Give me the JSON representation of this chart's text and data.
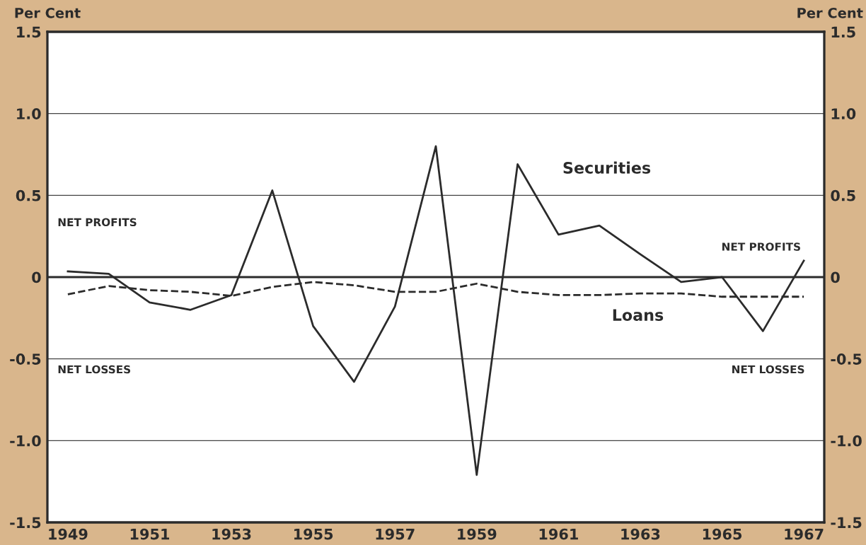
{
  "chart_data": {
    "type": "line",
    "ylabel": "Per Cent",
    "y2label": "Per Cent",
    "x": [
      1949,
      1950,
      1951,
      1952,
      1953,
      1954,
      1955,
      1956,
      1957,
      1958,
      1959,
      1960,
      1961,
      1962,
      1963,
      1964,
      1965,
      1966,
      1967
    ],
    "series": [
      {
        "name": "Securities",
        "color": "#2b2b2b",
        "line_style": "solid",
        "values": [
          0.035,
          0.02,
          -0.155,
          -0.2,
          -0.11,
          0.53,
          -0.3,
          -0.64,
          -0.18,
          0.8,
          -1.21,
          0.69,
          0.26,
          0.315,
          0.14,
          -0.03,
          0.0,
          -0.33,
          0.1
        ]
      },
      {
        "name": "Loans",
        "color": "#2b2b2b",
        "line_style": "dashed",
        "values": [
          -0.105,
          -0.055,
          -0.08,
          -0.09,
          -0.115,
          -0.06,
          -0.03,
          -0.05,
          -0.09,
          -0.09,
          -0.04,
          -0.09,
          -0.11,
          -0.11,
          -0.1,
          -0.1,
          -0.12,
          -0.12,
          -0.12
        ]
      }
    ],
    "xlim": [
      1948.5,
      1967.5
    ],
    "xticks": [
      1949,
      1951,
      1953,
      1955,
      1957,
      1959,
      1961,
      1963,
      1965,
      1967
    ],
    "ylim": [
      -1.5,
      1.5
    ],
    "yticks": [
      {
        "value": -1.5,
        "label": "-1.5"
      },
      {
        "value": -1.0,
        "label": "-1.0"
      },
      {
        "value": -0.5,
        "label": "-0.5"
      },
      0,
      {
        "value": 0.5,
        "label": "0.5"
      },
      {
        "value": 1.0,
        "label": "1.0"
      },
      {
        "value": 1.5,
        "label": "1.5"
      }
    ],
    "y2lim": [
      -1.5,
      1.5
    ],
    "y2ticks": [
      {
        "value": -1.5,
        "label": "-1.5"
      },
      {
        "value": -1.0,
        "label": "-1.0"
      },
      {
        "value": -0.5,
        "label": "-0.5"
      },
      0,
      {
        "value": 0.5,
        "label": "0.5"
      },
      {
        "value": 1.0,
        "label": "1.0"
      },
      {
        "value": 1.5,
        "label": "1.5"
      }
    ],
    "grid": "y",
    "ref_lines": [
      {
        "axis": "y",
        "value": 0,
        "color": "#2b2b2b"
      }
    ],
    "annotations": [
      "NET PROFITS",
      "NET LOSSES",
      "NET PROFITS",
      "NET LOSSES"
    ]
  }
}
